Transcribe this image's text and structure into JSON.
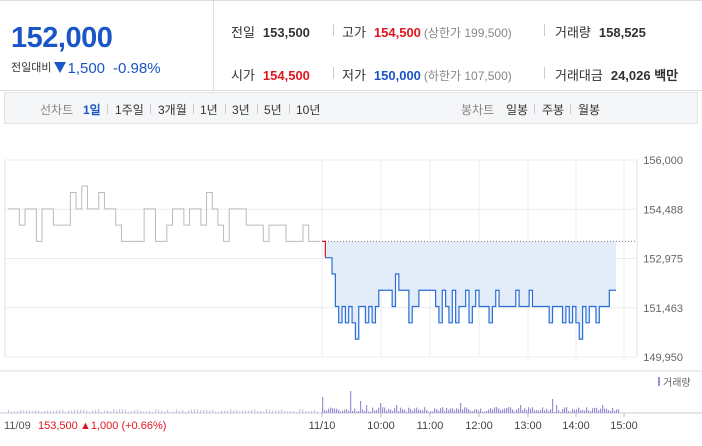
{
  "summary": {
    "price": "152,000",
    "change_label": "전일대비",
    "change_amount": "1,500",
    "change_rate": "-0.98%",
    "prev_close_label": "전일",
    "prev_close": "153,500",
    "high_label": "고가",
    "high": "154,500",
    "upper_limit": "(상한가 199,500)",
    "volume_label": "거래량",
    "volume": "158,525",
    "open_label": "시가",
    "open": "154,500",
    "low_label": "저가",
    "low": "150,000",
    "lower_limit": "(하한가 107,500)",
    "amount_label": "거래대금",
    "amount": "24,026 백만"
  },
  "tabs": {
    "line_chart_label": "선차트",
    "periods": [
      "1일",
      "1주일",
      "3개월",
      "1년",
      "3년",
      "5년",
      "10년"
    ],
    "active_period": "1일",
    "candle_label": "봉차트",
    "candles": [
      "일봉",
      "주봉",
      "월봉"
    ]
  },
  "colors": {
    "up": "#e0161e",
    "down": "#1a56c7",
    "prev_day_line": "#bbbbbb",
    "fill": "#e3ecf9",
    "volume_bar": "#9e8ed6"
  },
  "chart_data": {
    "type": "line",
    "title": "",
    "xlabel": "",
    "ylabel": "",
    "ylim": [
      149950,
      156000
    ],
    "y_ticks": [
      "156,000",
      "154,488",
      "152,975",
      "151,463",
      "149,950"
    ],
    "x_ticks": [
      "11/10",
      "10:00",
      "11:00",
      "12:00",
      "13:00",
      "14:00",
      "15:00"
    ],
    "reference_value": 153500,
    "previous_day": {
      "date": "11/09",
      "close": "153,500",
      "change": "▲1,000 (+0.66%)",
      "values": [
        154500,
        154500,
        154000,
        154500,
        154500,
        153500,
        154500,
        154500,
        154000,
        154000,
        154000,
        155000,
        154500,
        155200,
        154500,
        154500,
        155000,
        154500,
        154500,
        154000,
        153500,
        153500,
        153500,
        153500,
        154500,
        154500,
        153500,
        153500,
        154000,
        154500,
        154500,
        154000,
        154500,
        154500,
        154000,
        155000,
        154500,
        154000,
        153500,
        154500,
        154500,
        154500,
        154000,
        154000,
        154000,
        153500,
        154000,
        154000,
        154000,
        153500,
        153500,
        153500,
        154000,
        153500,
        153500,
        153500
      ]
    },
    "today": {
      "values": [
        153500,
        153000,
        153000,
        152500,
        151500,
        151000,
        151500,
        151000,
        151500,
        151000,
        150500,
        151500,
        151500,
        151000,
        151500,
        151000,
        151500,
        152000,
        152000,
        152000,
        152000,
        151500,
        152500,
        152000,
        152000,
        152000,
        151000,
        151500,
        151500,
        152000,
        152000,
        152000,
        152000,
        152000,
        151500,
        151000,
        152000,
        151500,
        151000,
        152000,
        151000,
        151500,
        151500,
        152000,
        151000,
        151500,
        152000,
        151500,
        151500,
        151500,
        151000,
        151500,
        152000,
        151500,
        151500,
        151500,
        151500,
        151500,
        152000,
        151500,
        151500,
        151500,
        152000,
        151500,
        151500,
        151500,
        151500,
        151500,
        151000,
        151500,
        151500,
        151500,
        151000,
        151500,
        151000,
        151500,
        151000,
        150500,
        151500,
        151000,
        151500,
        151500,
        151000,
        151500,
        151500,
        151500,
        152000,
        152000,
        152000
      ]
    },
    "volume_legend": "거래량"
  }
}
